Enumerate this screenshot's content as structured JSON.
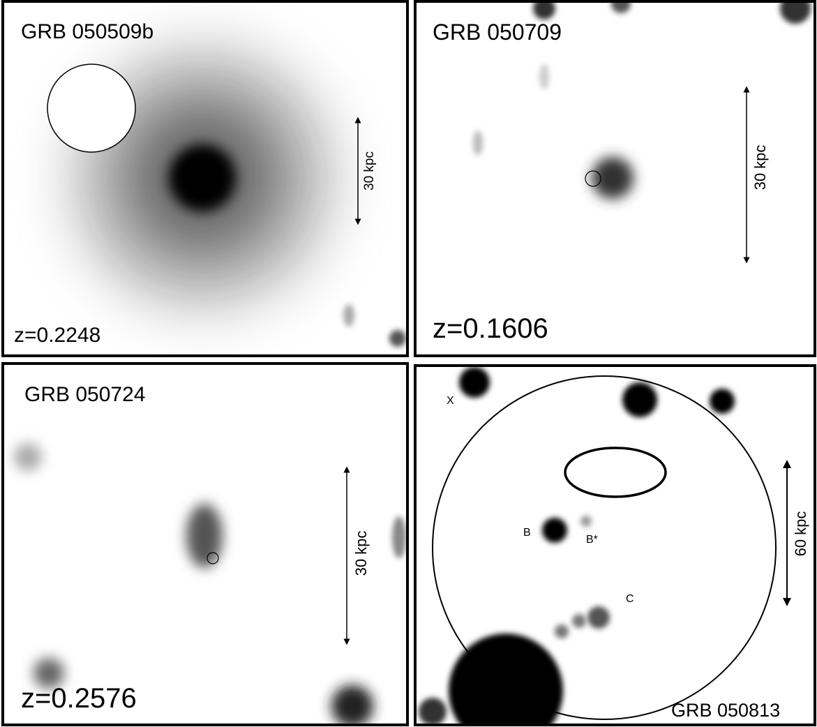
{
  "panels": [
    {
      "title": "GRB 050509b",
      "redshift": "z=0.2248",
      "scale_label": "30 kpc"
    },
    {
      "title": "GRB 050709",
      "redshift": "z=0.1606",
      "scale_label": "30 kpc"
    },
    {
      "title": "GRB 050724",
      "redshift": "z=0.2576",
      "scale_label": "30 kpc"
    },
    {
      "title": "GRB 050813",
      "scale_label": "60 kpc",
      "labels": [
        "X",
        "B",
        "B*",
        "C"
      ]
    }
  ]
}
